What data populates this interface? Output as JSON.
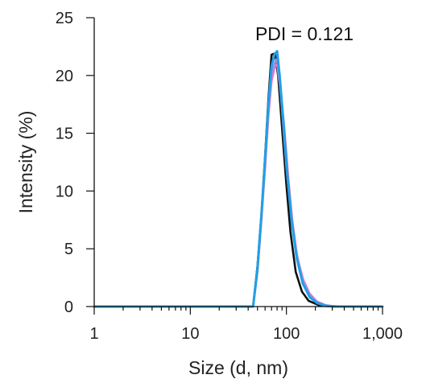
{
  "chart_data": {
    "type": "line",
    "xlabel": "Size (d, nm)",
    "ylabel": "Intensity (%)",
    "xscale": "log",
    "xlim": [
      1,
      1000
    ],
    "ylim": [
      0,
      25
    ],
    "x_ticks": [
      {
        "value": 1,
        "label": "1"
      },
      {
        "value": 10,
        "label": "10"
      },
      {
        "value": 100,
        "label": "100"
      },
      {
        "value": 1000,
        "label": "1,000"
      }
    ],
    "y_ticks": [
      {
        "value": 0,
        "label": "0"
      },
      {
        "value": 5,
        "label": "5"
      },
      {
        "value": 10,
        "label": "10"
      },
      {
        "value": 15,
        "label": "15"
      },
      {
        "value": 20,
        "label": "20"
      },
      {
        "value": 25,
        "label": "25"
      }
    ],
    "annotation": "PDI = 0.121",
    "grid": false,
    "series": [
      {
        "color": "#111111",
        "points": [
          [
            1,
            0
          ],
          [
            45,
            0
          ],
          [
            50,
            3.5
          ],
          [
            55,
            8
          ],
          [
            60,
            13
          ],
          [
            65,
            18
          ],
          [
            70,
            21.8
          ],
          [
            76,
            21.9
          ],
          [
            82,
            20
          ],
          [
            90,
            15.5
          ],
          [
            100,
            10.5
          ],
          [
            110,
            6.5
          ],
          [
            125,
            3
          ],
          [
            145,
            1.3
          ],
          [
            170,
            0.5
          ],
          [
            220,
            0.1
          ],
          [
            300,
            0
          ],
          [
            1000,
            0
          ]
        ]
      },
      {
        "color": "#e87ac8",
        "points": [
          [
            1,
            0
          ],
          [
            45,
            0
          ],
          [
            50,
            3
          ],
          [
            55,
            7.5
          ],
          [
            60,
            12
          ],
          [
            65,
            16.5
          ],
          [
            70,
            19.5
          ],
          [
            76,
            20.8
          ],
          [
            80,
            21
          ],
          [
            86,
            19
          ],
          [
            95,
            15.5
          ],
          [
            105,
            11
          ],
          [
            115,
            7.5
          ],
          [
            130,
            4.2
          ],
          [
            150,
            2.3
          ],
          [
            175,
            1.1
          ],
          [
            210,
            0.4
          ],
          [
            260,
            0.1
          ],
          [
            330,
            0
          ],
          [
            1000,
            0
          ]
        ]
      },
      {
        "color": "#a78be0",
        "points": [
          [
            1,
            0
          ],
          [
            45,
            0
          ],
          [
            50,
            3.2
          ],
          [
            55,
            7.8
          ],
          [
            60,
            12.5
          ],
          [
            65,
            17
          ],
          [
            70,
            20.2
          ],
          [
            78,
            21.4
          ],
          [
            82,
            21
          ],
          [
            90,
            17
          ],
          [
            100,
            12
          ],
          [
            112,
            8
          ],
          [
            125,
            5
          ],
          [
            145,
            2.5
          ],
          [
            170,
            1.2
          ],
          [
            200,
            0.5
          ],
          [
            250,
            0.15
          ],
          [
            320,
            0
          ],
          [
            1000,
            0
          ]
        ]
      },
      {
        "color": "#1ea1e6",
        "points": [
          [
            1,
            0
          ],
          [
            45,
            0
          ],
          [
            50,
            3.3
          ],
          [
            55,
            8
          ],
          [
            60,
            12.8
          ],
          [
            65,
            17.5
          ],
          [
            70,
            20.8
          ],
          [
            75,
            21.8
          ],
          [
            80,
            22.1
          ],
          [
            85,
            20
          ],
          [
            93,
            16
          ],
          [
            102,
            11.5
          ],
          [
            113,
            7.5
          ],
          [
            128,
            4.2
          ],
          [
            148,
            2
          ],
          [
            175,
            0.8
          ],
          [
            210,
            0.3
          ],
          [
            260,
            0.05
          ],
          [
            350,
            0
          ],
          [
            1000,
            0
          ]
        ]
      }
    ]
  }
}
